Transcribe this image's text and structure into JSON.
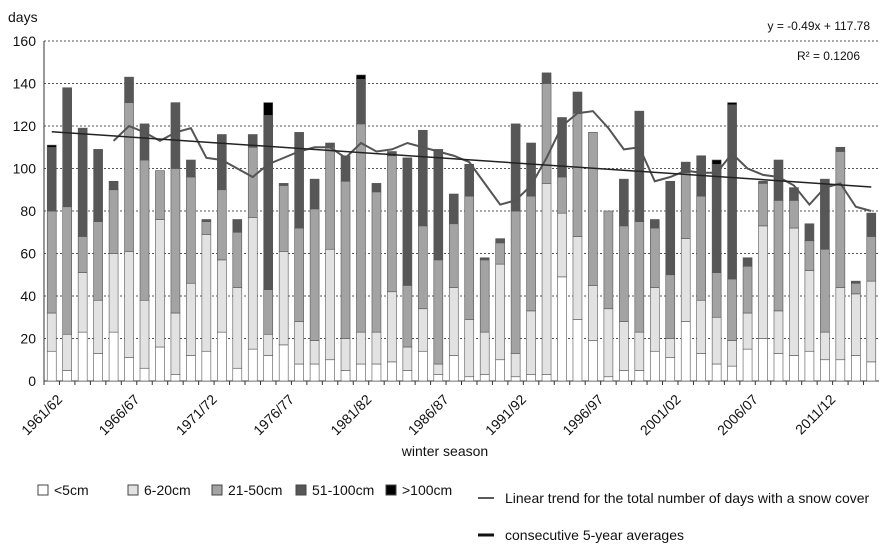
{
  "chart_data": {
    "type": "stacked_bar",
    "y_label": "days",
    "x_label": "winter season",
    "categories": [
      "1961/62",
      null,
      null,
      null,
      null,
      "1966/67",
      null,
      null,
      null,
      null,
      "1971/72",
      null,
      null,
      null,
      null,
      "1976/77",
      null,
      null,
      null,
      null,
      "1981/82",
      null,
      null,
      null,
      null,
      "1986/87",
      null,
      null,
      null,
      null,
      "1991/92",
      null,
      null,
      null,
      null,
      "1996/97",
      null,
      null,
      null,
      null,
      "2001/02",
      null,
      null,
      null,
      null,
      "2006/07",
      null,
      null,
      null,
      null,
      "2011/12",
      null,
      null,
      null
    ],
    "ylim": [
      0,
      160
    ],
    "yticks": [
      0,
      20,
      40,
      60,
      80,
      100,
      120,
      140,
      160
    ],
    "grid": true,
    "series": [
      {
        "name": "<5cm",
        "color": "#ffffff",
        "values": [
          14,
          5,
          23,
          13,
          23,
          11,
          6,
          16,
          3,
          12,
          14,
          23,
          6,
          15,
          12,
          17,
          8,
          8,
          10,
          5,
          8,
          8,
          9,
          5,
          14,
          3,
          12,
          2,
          3,
          10,
          2,
          3,
          3,
          49,
          29,
          19,
          2,
          5,
          5,
          14,
          11,
          28,
          13,
          8,
          7,
          15,
          20,
          13,
          12,
          14,
          10,
          10,
          12,
          9
        ]
      },
      {
        "name": "6-20cm",
        "color": "#e2e2e2",
        "values": [
          18,
          17,
          28,
          25,
          37,
          50,
          32,
          60,
          29,
          34,
          55,
          34,
          38,
          62,
          10,
          44,
          20,
          11,
          52,
          15,
          15,
          15,
          33,
          11,
          20,
          5,
          32,
          27,
          20,
          45,
          11,
          30,
          90,
          30,
          39,
          26,
          32,
          23,
          18,
          30,
          9,
          39,
          25,
          22,
          12,
          17,
          53,
          20,
          60,
          38,
          13,
          34,
          29,
          38
        ]
      },
      {
        "name": "21-50cm",
        "color": "#a3a3a3",
        "values": [
          48,
          60,
          17,
          37,
          30,
          70,
          66,
          23,
          68,
          50,
          6,
          33,
          26,
          33,
          21,
          31,
          44,
          62,
          48,
          74,
          98,
          66,
          64,
          29,
          39,
          49,
          30,
          58,
          34,
          10,
          67,
          54,
          47,
          17,
          58,
          72,
          46,
          45,
          52,
          28,
          30,
          31,
          49,
          21,
          29,
          22,
          20,
          52,
          13,
          14,
          39,
          64,
          5,
          21
        ]
      },
      {
        "name": "51-100cm",
        "color": "#575757",
        "values": [
          30,
          56,
          51,
          34,
          4,
          12,
          17,
          0,
          31,
          8,
          1,
          26,
          6,
          6,
          82,
          1,
          45,
          14,
          2,
          12,
          21,
          4,
          2,
          60,
          45,
          52,
          14,
          15,
          1,
          2,
          41,
          25,
          5,
          28,
          10,
          0,
          0,
          22,
          52,
          4,
          44,
          5,
          19,
          51,
          82,
          4,
          1,
          19,
          6,
          8,
          33,
          2,
          1,
          11
        ]
      },
      {
        "name": ">100cm",
        "color": "#000000",
        "values": [
          1,
          0,
          0,
          0,
          0,
          0,
          0,
          0,
          0,
          0,
          0,
          0,
          0,
          0,
          6,
          0,
          0,
          0,
          0,
          0,
          2,
          0,
          0,
          0,
          0,
          0,
          0,
          0,
          0,
          0,
          0,
          0,
          0,
          0,
          0,
          0,
          0,
          0,
          0,
          0,
          0,
          0,
          0,
          2,
          1,
          0,
          0,
          0,
          0,
          0,
          0,
          0,
          0,
          0
        ]
      }
    ],
    "average": {
      "name": "consecutive 5-year averages",
      "color": "#555555",
      "values": [
        null,
        null,
        null,
        null,
        113,
        120,
        117,
        113,
        117,
        119,
        105,
        104,
        100,
        96,
        102,
        105,
        108,
        110,
        110,
        105,
        112,
        108,
        109,
        112,
        110,
        108,
        106,
        103,
        93,
        83,
        85,
        92,
        105,
        120,
        126,
        127,
        119,
        109,
        110,
        94,
        96,
        99,
        98,
        98,
        107,
        100,
        97,
        96,
        92,
        83,
        91,
        93,
        82,
        80
      ]
    },
    "trend": {
      "name": "Linear trend for the total number of days with a snow cover",
      "color": "#222222",
      "slope": -0.49,
      "intercept": 117.78,
      "equation": "y = -0.49x + 117.78",
      "r2": "R² = 0.1206"
    }
  }
}
